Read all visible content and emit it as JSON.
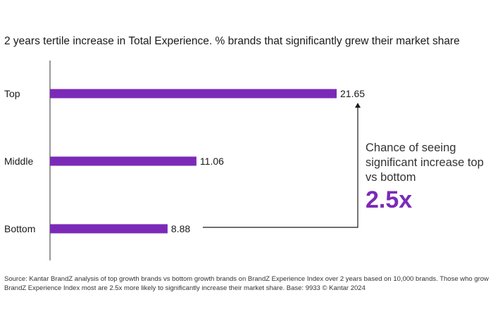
{
  "chart_data": {
    "type": "bar",
    "orientation": "horizontal",
    "title": "2 years tertile increase in Total Experience. % brands that significantly grew their market share",
    "categories": [
      "Top",
      "Middle",
      "Bottom"
    ],
    "values": [
      21.65,
      11.06,
      8.88
    ],
    "value_labels": [
      "21.65",
      "11.06",
      "8.88"
    ],
    "xlim": [
      0,
      21.65
    ],
    "grid": false,
    "bar_color": "#7b2ab8"
  },
  "callout": {
    "text": "Chance of seeing significant increase top vs bottom",
    "value": "2.5x",
    "color": "#7b2ab8",
    "line_color": "#1a1a1a"
  },
  "source": "Source: Kantar BrandZ analysis of top growth brands vs bottom growth brands on BrandZ Experience Index over 2 years based on 10,000 brands. Those who grow BrandZ Experience Index most are 2.5x more likely to significantly increase their market share. Base: 9933 © Kantar 2024"
}
